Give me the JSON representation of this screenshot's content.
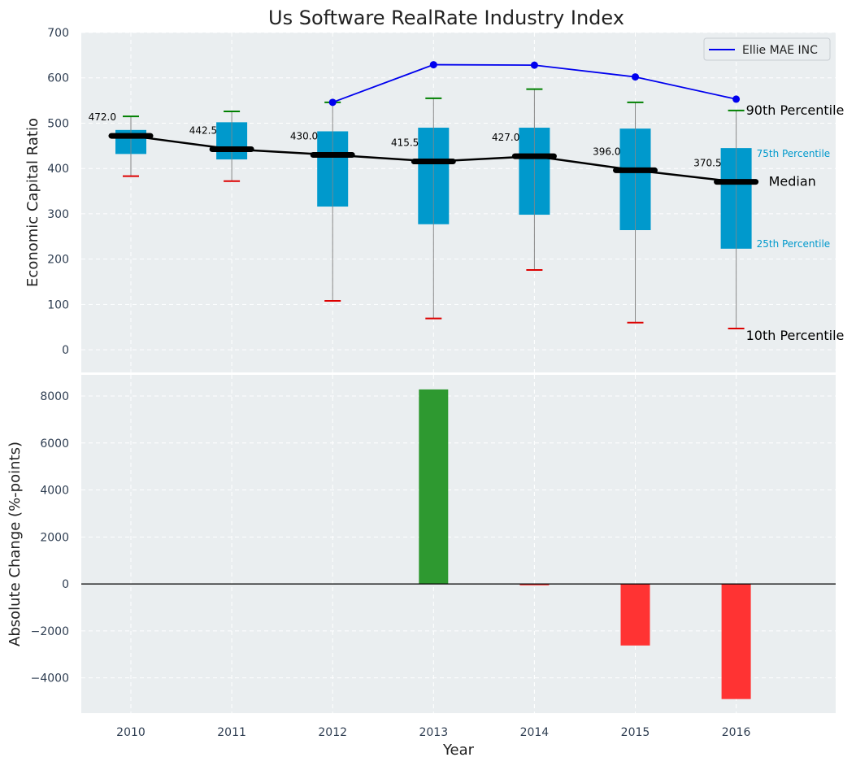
{
  "chart_data": [
    {
      "type": "box",
      "title": "Us Software RealRate Industry Index",
      "ylabel": "Economic Capital Ratio",
      "ylim": [
        -50,
        700
      ],
      "yticks": [
        0,
        100,
        200,
        300,
        400,
        500,
        600,
        700
      ],
      "grid": true,
      "categories": [
        "2010",
        "2011",
        "2012",
        "2013",
        "2014",
        "2015",
        "2016"
      ],
      "p10": [
        383,
        372,
        108,
        69,
        176,
        60,
        47
      ],
      "p25": [
        432,
        420,
        316,
        277,
        298,
        264,
        223
      ],
      "median": [
        472.0,
        442.5,
        430.0,
        415.5,
        427.0,
        396.0,
        370.5
      ],
      "p75": [
        485,
        502,
        482,
        490,
        490,
        488,
        445
      ],
      "p90": [
        515,
        526,
        546,
        555,
        575,
        546,
        528
      ],
      "median_labels": [
        "472.0",
        "442.5",
        "430.0",
        "415.5",
        "427.0",
        "396.0",
        "370.5"
      ],
      "series": [
        {
          "name": "Ellie MAE INC",
          "color": "#0000ee",
          "x": [
            "2012",
            "2013",
            "2014",
            "2015",
            "2016"
          ],
          "values": [
            546,
            629,
            628,
            602,
            553
          ]
        }
      ],
      "legend": {
        "position": "top-right",
        "entries": [
          "Ellie MAE INC"
        ]
      },
      "annotations": {
        "p90": "90th Percentile",
        "p75": "75th Percentile",
        "median": "Median",
        "p25": "25th Percentile",
        "p10": "10th Percentile"
      },
      "colors": {
        "box": "#0099cc",
        "median": "#000000",
        "p90_cap": "#008000",
        "p10_cap": "#dd0000",
        "whisker": "#888888",
        "background": "#eaeef0"
      }
    },
    {
      "type": "bar",
      "ylabel": "Absolute Change (%-points)",
      "xlabel": "Year",
      "ylim": [
        -5500,
        8900
      ],
      "yticks": [
        -4000,
        -2000,
        0,
        2000,
        4000,
        6000,
        8000
      ],
      "ytick_labels": [
        "−4000",
        "−2000",
        "0",
        "2000",
        "4000",
        "6000",
        "8000"
      ],
      "grid": true,
      "categories": [
        "2010",
        "2011",
        "2012",
        "2013",
        "2014",
        "2015",
        "2016"
      ],
      "values": [
        0,
        0,
        0,
        8280,
        -60,
        -2620,
        -4900
      ],
      "colors": {
        "positive": "#2e9930",
        "negative": "#ff3333",
        "zero_line": "#000000"
      }
    }
  ]
}
